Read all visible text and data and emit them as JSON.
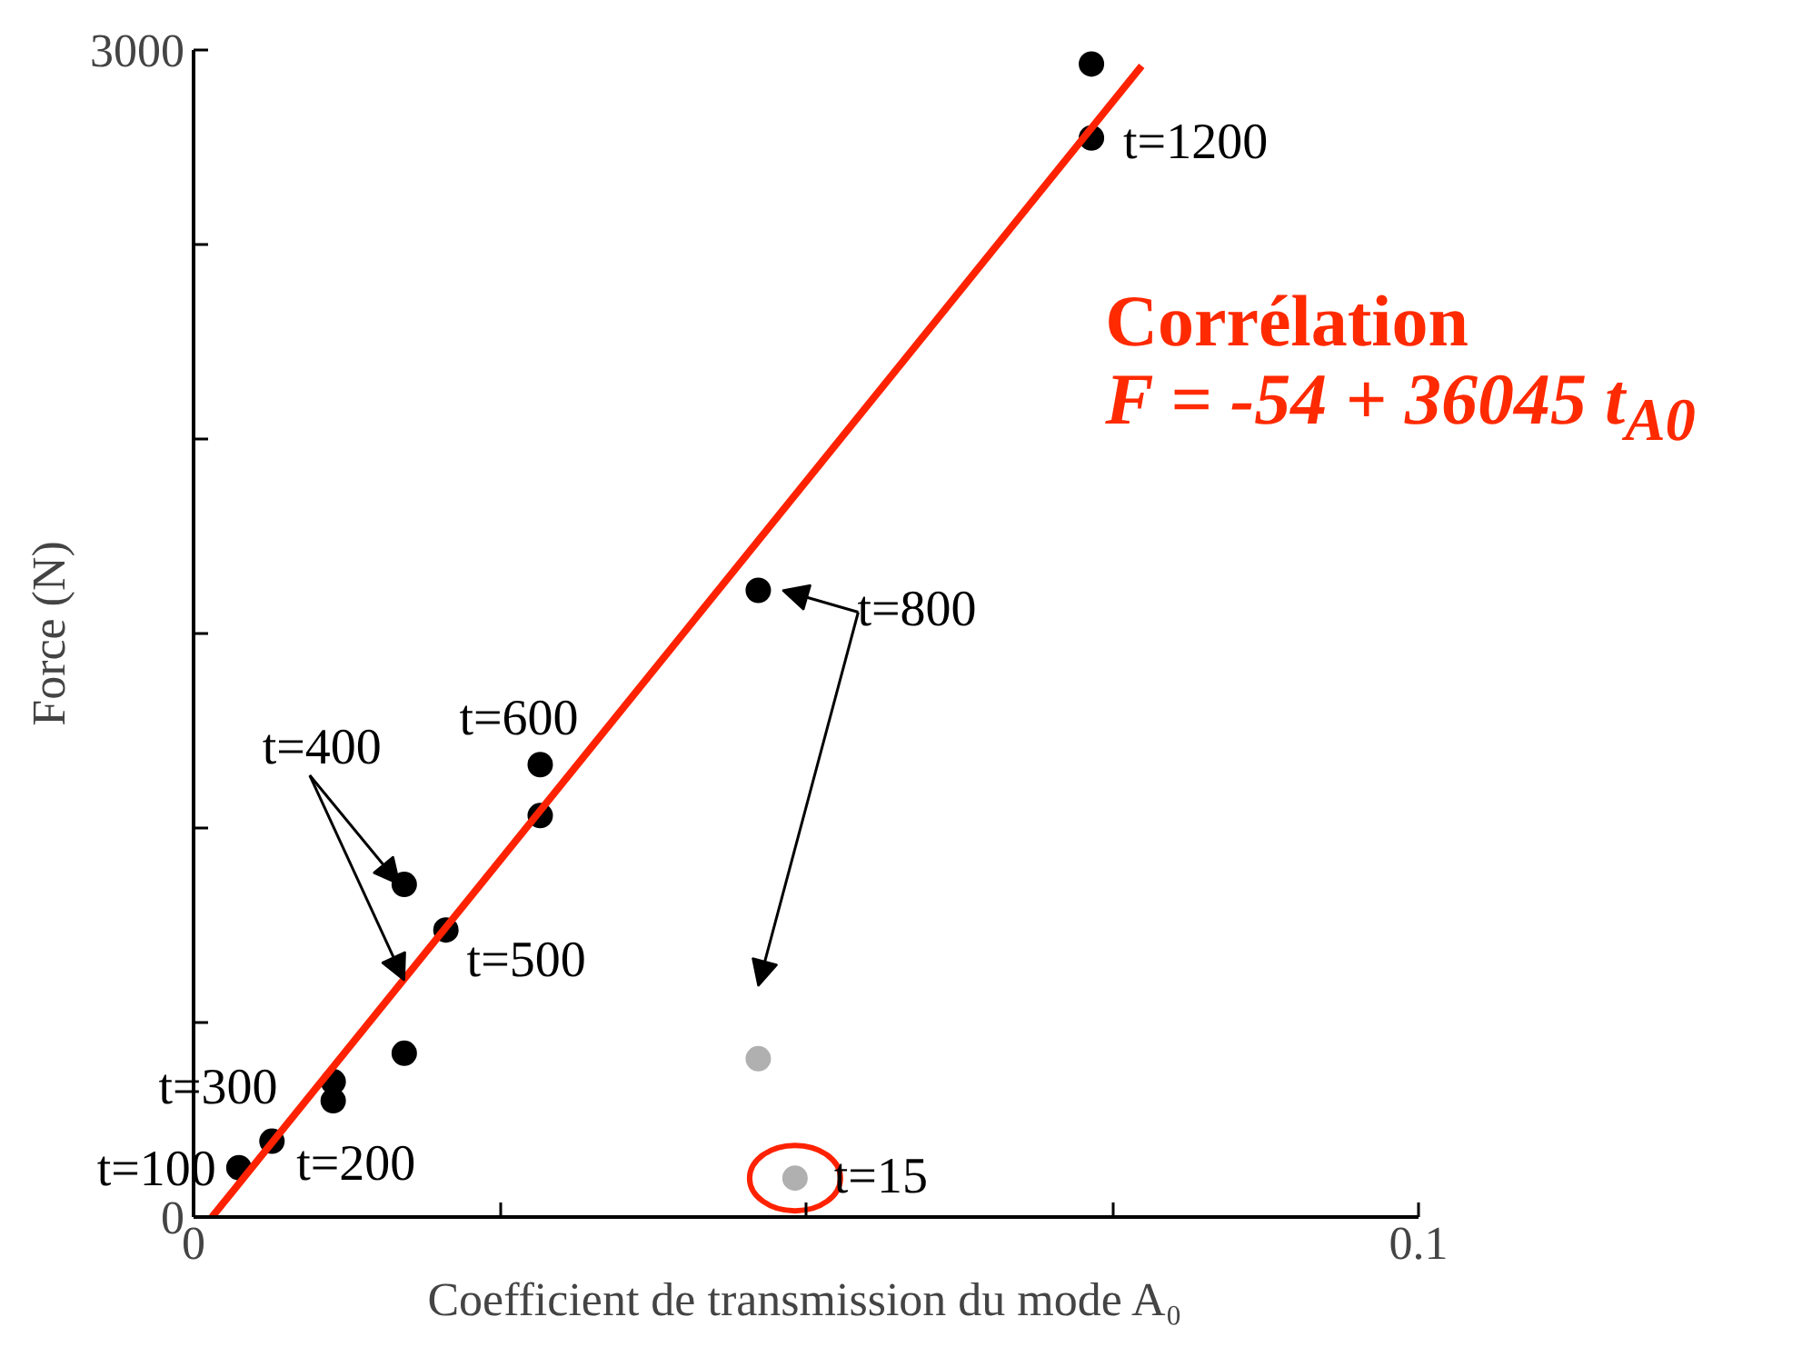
{
  "chart_data": {
    "type": "scatter",
    "xlabel": "Coefficient de transmission du mode A₀",
    "ylabel": "Force (N)",
    "xlim": [
      0,
      0.1
    ],
    "ylim": [
      0,
      3000
    ],
    "xticks": [
      0,
      {
        "value": 0.025,
        "label": null
      },
      {
        "value": 0.05,
        "label": null
      },
      {
        "value": 0.075,
        "label": null
      },
      {
        "value": 0.1,
        "label": "0.1"
      }
    ],
    "yticks": [
      0,
      {
        "value": 500,
        "label": null
      },
      {
        "value": 1000,
        "label": null
      },
      {
        "value": 1500,
        "label": null
      },
      {
        "value": 2000,
        "label": null
      },
      {
        "value": 2500,
        "label": null
      },
      3000
    ],
    "marker": "circle",
    "grid": false,
    "series": [
      {
        "color": "#000000",
        "x": [
          0.0037,
          0.0064,
          0.0114,
          0.0114,
          0.0172,
          0.0172,
          0.0206,
          0.0283,
          0.0283,
          0.0461,
          0.0733,
          0.0733
        ],
        "values": [
          127,
          195,
          299,
          348,
          421,
          855,
          738,
          1032,
          1163,
          1611,
          2774,
          2964
        ]
      },
      {
        "color": "#b0b0b0",
        "x": [
          0.0461,
          0.0491
        ],
        "values": [
          407,
          100
        ]
      },
      {
        "type": "line",
        "color": "#ff2200",
        "x": [
          0.0015,
          0.0774
        ],
        "values": [
          0,
          2959
        ],
        "line_style": "solid",
        "marker": "none"
      }
    ],
    "annotations": [
      {
        "text": "t=100",
        "x": 0.0037,
        "y": 127
      },
      {
        "text": "t=200",
        "x": 0.0064,
        "y": 195
      },
      {
        "text": "t=300",
        "x": 0.0114,
        "y": 348
      },
      {
        "text": "t=400",
        "x": 0.0172,
        "y": 855
      },
      {
        "text": "t=500",
        "x": 0.0206,
        "y": 738
      },
      {
        "text": "t=600",
        "x": 0.0283,
        "y": 1163
      },
      {
        "text": "t=800",
        "x": 0.0461,
        "y": 1611
      },
      {
        "text": "t=15",
        "x": 0.0491,
        "y": 100
      },
      {
        "text": "t=1200",
        "x": 0.0733,
        "y": 2964
      },
      "Corrélation",
      "F = -54 + 36045 t$_{A0}$"
    ]
  }
}
